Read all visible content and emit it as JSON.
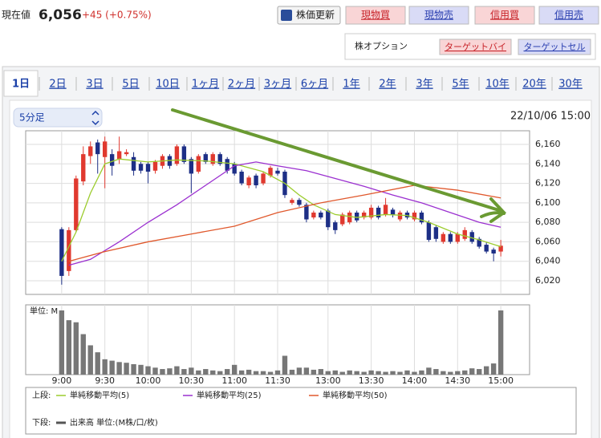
{
  "header": {
    "label": "現在値",
    "price": "6,056",
    "change": "+45 (+0.75%)",
    "refresh": "株価更新",
    "buttons": [
      "現物買",
      "現物売",
      "信用買",
      "信用売"
    ]
  },
  "options": {
    "label": "株オプション",
    "buttons": [
      "ターゲットバイ",
      "ターゲットセル"
    ]
  },
  "tabs": [
    "1日",
    "2日",
    "3日",
    "5日",
    "10日",
    "1ヶ月",
    "2ヶ月",
    "3ヶ月",
    "6ヶ月",
    "1年",
    "2年",
    "3年",
    "5年",
    "10年",
    "20年",
    "30年"
  ],
  "interval": "5分足",
  "datetime": "22/10/06 15:00",
  "legend": {
    "upper": "上段:",
    "lower": "下段:",
    "volume": "出来高 単位:(M株/口/枚)"
  },
  "chart_data": {
    "type": "candlestick",
    "up_color": "#e0392f",
    "down_color": "#1d2f86",
    "grid": true,
    "xlim": [
      -5,
      65
    ],
    "xticks": [
      {
        "value": 0,
        "label": "9:00"
      },
      {
        "value": 6,
        "label": "9:30"
      },
      {
        "value": 12,
        "label": "10:00"
      },
      {
        "value": 18,
        "label": "10:30"
      },
      {
        "value": 24,
        "label": "11:00"
      },
      {
        "value": 30,
        "label": "11:30"
      },
      {
        "value": 37,
        "label": "13:00"
      },
      {
        "value": 43,
        "label": "13:30"
      },
      {
        "value": 49,
        "label": "14:00"
      },
      {
        "value": 55,
        "label": "14:30"
      },
      {
        "value": 61,
        "label": "15:00"
      }
    ],
    "ylim": [
      6006,
      6174
    ],
    "yticks": [
      {
        "value": 6020,
        "label": "6,020"
      },
      {
        "value": 6040,
        "label": "6,040"
      },
      {
        "value": 6060,
        "label": "6,060"
      },
      {
        "value": 6080,
        "label": "6,080"
      },
      {
        "value": 6100,
        "label": "6,100"
      },
      {
        "value": 6120,
        "label": "6,120"
      },
      {
        "value": 6140,
        "label": "6,140"
      },
      {
        "value": 6160,
        "label": "6,160"
      }
    ],
    "open": [
      6073,
      6030,
      6072,
      6122,
      6148,
      6162,
      6147,
      6150,
      6145,
      6150,
      6147,
      6140,
      6140,
      6133,
      6138,
      6148,
      6140,
      6158,
      6145,
      6132,
      6150,
      6140,
      6150,
      6145,
      6140,
      6132,
      6118,
      6128,
      6120,
      6128,
      6133,
      6132,
      6100,
      6103,
      6098,
      6085,
      6090,
      6092,
      6080,
      6078,
      6080,
      6090,
      6085,
      6085,
      6095,
      6088,
      6093,
      6083,
      6090,
      6083,
      6090,
      6080,
      6075,
      6060,
      6068,
      6060,
      6063,
      6070,
      6063,
      6057,
      6052,
      6050
    ],
    "high": [
      6075,
      6075,
      6128,
      6158,
      6163,
      6165,
      6168,
      6155,
      6168,
      6155,
      6152,
      6142,
      6142,
      6144,
      6150,
      6150,
      6160,
      6160,
      6147,
      6150,
      6152,
      6152,
      6152,
      6147,
      6142,
      6134,
      6128,
      6130,
      6132,
      6138,
      6136,
      6134,
      6105,
      6105,
      6100,
      6092,
      6092,
      6094,
      6082,
      6090,
      6092,
      6092,
      6092,
      6098,
      6097,
      6105,
      6095,
      6092,
      6092,
      6092,
      6092,
      6082,
      6077,
      6070,
      6070,
      6070,
      6075,
      6072,
      6065,
      6060,
      6054,
      6062
    ],
    "low": [
      6016,
      6025,
      6070,
      6118,
      6140,
      6130,
      6115,
      6128,
      6140,
      6148,
      6128,
      6130,
      6120,
      6130,
      6135,
      6135,
      6138,
      6140,
      6110,
      6130,
      6140,
      6138,
      6138,
      6130,
      6128,
      6118,
      6115,
      6115,
      6118,
      6126,
      6128,
      6105,
      6098,
      6096,
      6080,
      6083,
      6083,
      6072,
      6068,
      6076,
      6078,
      6080,
      6083,
      6083,
      6083,
      6086,
      6085,
      6081,
      6083,
      6081,
      6078,
      6060,
      6060,
      6058,
      6058,
      6058,
      6061,
      6058,
      6053,
      6048,
      6040,
      6045
    ],
    "close": [
      6025,
      6072,
      6125,
      6150,
      6158,
      6150,
      6163,
      6138,
      6153,
      6152,
      6133,
      6133,
      6132,
      6142,
      6148,
      6138,
      6158,
      6142,
      6130,
      6148,
      6142,
      6150,
      6140,
      6133,
      6130,
      6120,
      6126,
      6118,
      6130,
      6136,
      6130,
      6108,
      6103,
      6098,
      6083,
      6090,
      6085,
      6075,
      6072,
      6088,
      6090,
      6082,
      6090,
      6095,
      6085,
      6098,
      6088,
      6090,
      6085,
      6090,
      6080,
      6062,
      6063,
      6068,
      6060,
      6068,
      6072,
      6060,
      6055,
      6050,
      6048,
      6056
    ],
    "series": [
      {
        "name": "単純移動平均(5)",
        "color": "#9ccc2e",
        "x": [
          0,
          2,
          4,
          6,
          8,
          12,
          16,
          20,
          24,
          28,
          31,
          33,
          35,
          38,
          41,
          45,
          48,
          51,
          55,
          58,
          61
        ],
        "values": [
          6040,
          6070,
          6110,
          6140,
          6145,
          6142,
          6144,
          6143,
          6140,
          6132,
          6120,
          6108,
          6098,
          6088,
          6085,
          6088,
          6087,
          6080,
          6068,
          6062,
          6055
        ]
      },
      {
        "name": "単純移動平均(25)",
        "color": "#9b30d0",
        "x": [
          1,
          4,
          8,
          12,
          16,
          20,
          24,
          27,
          30,
          34,
          38,
          42,
          46,
          50,
          54,
          58,
          61
        ],
        "values": [
          6036,
          6042,
          6060,
          6080,
          6098,
          6118,
          6138,
          6142,
          6138,
          6133,
          6125,
          6117,
          6108,
          6100,
          6090,
          6080,
          6075
        ]
      },
      {
        "name": "単純移動平均(50)",
        "color": "#e0582c",
        "x": [
          1,
          6,
          12,
          18,
          24,
          30,
          36,
          42,
          49,
          55,
          61
        ],
        "values": [
          6040,
          6050,
          6060,
          6068,
          6076,
          6090,
          6100,
          6108,
          6118,
          6113,
          6105
        ]
      }
    ],
    "volume": {
      "label": "単位: M",
      "color": "#777777",
      "ylim": [
        0,
        100
      ],
      "values": [
        92,
        78,
        75,
        58,
        42,
        32,
        22,
        20,
        18,
        17,
        15,
        14,
        12,
        10,
        8,
        9,
        12,
        8,
        10,
        6,
        8,
        6,
        5,
        8,
        14,
        6,
        7,
        5,
        5,
        4,
        6,
        27,
        7,
        10,
        10,
        7,
        8,
        5,
        6,
        4,
        6,
        5,
        4,
        6,
        5,
        4,
        5,
        4,
        6,
        4,
        6,
        10,
        8,
        5,
        4,
        5,
        6,
        9,
        8,
        12,
        16,
        92
      ]
    }
  }
}
